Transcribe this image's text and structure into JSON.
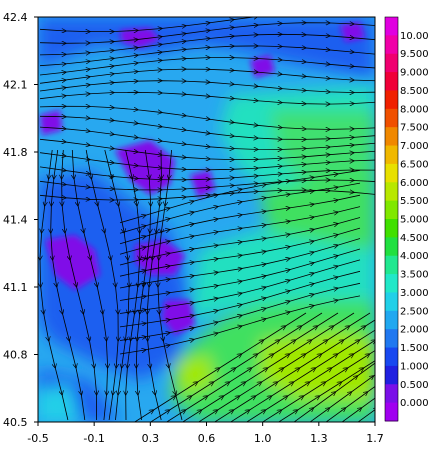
{
  "chart_data": {
    "type": "heatmap",
    "title": "",
    "xlabel": "",
    "ylabel": "",
    "xlim": [
      -0.5,
      1.7
    ],
    "ylim": [
      40.5,
      42.4
    ],
    "x_ticks": [
      "-0.5",
      "-0.1",
      "0.3",
      "0.6",
      "1.0",
      "1.3",
      "1.7"
    ],
    "y_ticks": [
      "42.4",
      "42.1",
      "41.8",
      "41.4",
      "41.1",
      "40.8",
      "40.5"
    ],
    "overlay": "streamlines",
    "grid": false,
    "colorbar": {
      "placement": "right",
      "labels": [
        "10.00",
        "9.500",
        "9.000",
        "8.500",
        "8.000",
        "7.500",
        "7.000",
        "6.500",
        "6.000",
        "5.500",
        "5.000",
        "4.500",
        "4.000",
        "3.500",
        "3.000",
        "2.500",
        "2.000",
        "1.500",
        "1.000",
        "0.500",
        "0.000"
      ],
      "colors": [
        "#e000e0",
        "#f000a8",
        "#f00070",
        "#f00038",
        "#f02000",
        "#f05000",
        "#f08800",
        "#f0b800",
        "#e8e000",
        "#b8e800",
        "#80e800",
        "#40e000",
        "#20e040",
        "#20e890",
        "#20e8c8",
        "#20d0e8",
        "#20a8f0",
        "#2078f0",
        "#1848f0",
        "#2020e0",
        "#7a10e8",
        "#a000f0"
      ]
    }
  }
}
